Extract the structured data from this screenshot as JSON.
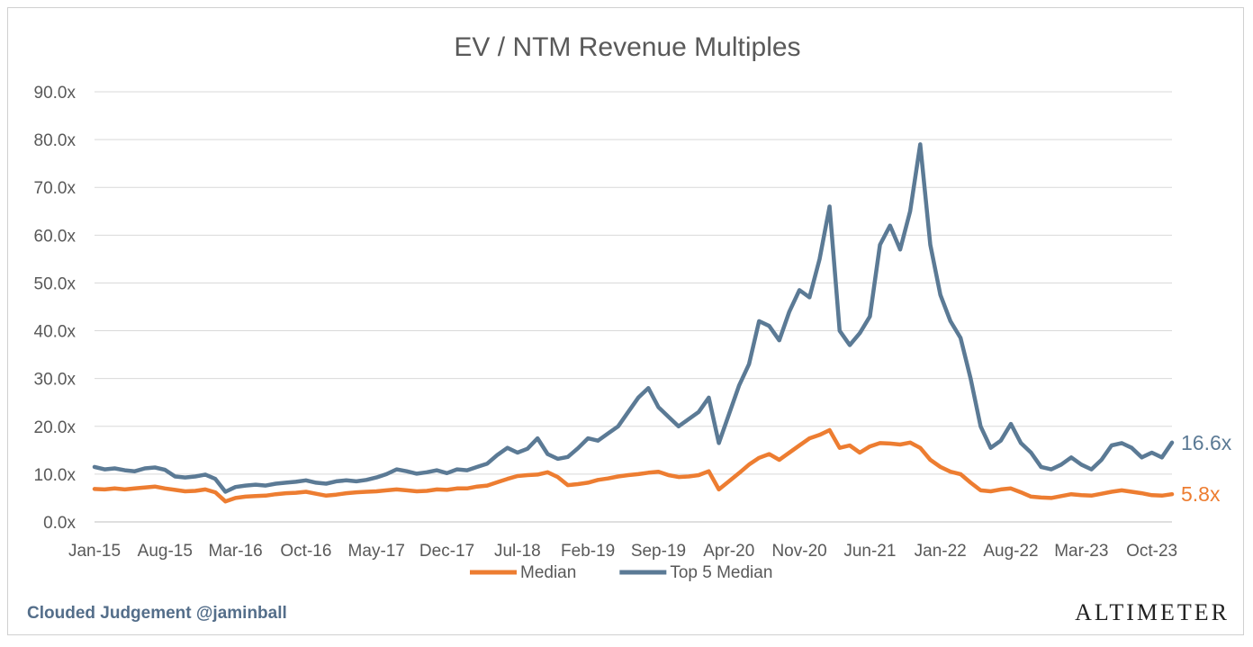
{
  "chart_data": {
    "type": "line",
    "title": "EV / NTM Revenue Multiples",
    "ylim": [
      0,
      90
    ],
    "yticks": [
      "0.0x",
      "10.0x",
      "20.0x",
      "30.0x",
      "40.0x",
      "50.0x",
      "60.0x",
      "70.0x",
      "80.0x",
      "90.0x"
    ],
    "xticks": [
      "Jan-15",
      "Aug-15",
      "Mar-16",
      "Oct-16",
      "May-17",
      "Dec-17",
      "Jul-18",
      "Feb-19",
      "Sep-19",
      "Apr-20",
      "Nov-20",
      "Jun-21",
      "Jan-22",
      "Aug-22",
      "Mar-23",
      "Oct-23"
    ],
    "x_range": [
      "Jan-15",
      "Dec-23"
    ],
    "grid": true,
    "legend_position": "bottom",
    "series": [
      {
        "name": "Median",
        "color": "#ed7d31",
        "end_label": "5.8x",
        "points": [
          [
            "2015-01",
            6.9
          ],
          [
            "2015-02",
            6.8
          ],
          [
            "2015-03",
            7.0
          ],
          [
            "2015-04",
            6.8
          ],
          [
            "2015-05",
            7.0
          ],
          [
            "2015-06",
            7.2
          ],
          [
            "2015-07",
            7.4
          ],
          [
            "2015-08",
            7.0
          ],
          [
            "2015-09",
            6.7
          ],
          [
            "2015-10",
            6.4
          ],
          [
            "2015-11",
            6.5
          ],
          [
            "2015-12",
            6.8
          ],
          [
            "2016-01",
            6.2
          ],
          [
            "2016-02",
            4.3
          ],
          [
            "2016-03",
            5.0
          ],
          [
            "2016-04",
            5.3
          ],
          [
            "2016-05",
            5.4
          ],
          [
            "2016-06",
            5.5
          ],
          [
            "2016-07",
            5.8
          ],
          [
            "2016-08",
            6.0
          ],
          [
            "2016-09",
            6.1
          ],
          [
            "2016-10",
            6.3
          ],
          [
            "2016-11",
            5.9
          ],
          [
            "2016-12",
            5.5
          ],
          [
            "2017-01",
            5.7
          ],
          [
            "2017-02",
            6.0
          ],
          [
            "2017-03",
            6.2
          ],
          [
            "2017-04",
            6.3
          ],
          [
            "2017-05",
            6.4
          ],
          [
            "2017-06",
            6.6
          ],
          [
            "2017-07",
            6.8
          ],
          [
            "2017-08",
            6.6
          ],
          [
            "2017-09",
            6.4
          ],
          [
            "2017-10",
            6.5
          ],
          [
            "2017-11",
            6.8
          ],
          [
            "2017-12",
            6.7
          ],
          [
            "2018-01",
            7.0
          ],
          [
            "2018-02",
            7.0
          ],
          [
            "2018-03",
            7.4
          ],
          [
            "2018-04",
            7.6
          ],
          [
            "2018-05",
            8.3
          ],
          [
            "2018-06",
            9.0
          ],
          [
            "2018-07",
            9.6
          ],
          [
            "2018-08",
            9.8
          ],
          [
            "2018-09",
            9.9
          ],
          [
            "2018-10",
            10.4
          ],
          [
            "2018-11",
            9.4
          ],
          [
            "2018-12",
            7.7
          ],
          [
            "2019-01",
            7.9
          ],
          [
            "2019-02",
            8.2
          ],
          [
            "2019-03",
            8.8
          ],
          [
            "2019-04",
            9.1
          ],
          [
            "2019-05",
            9.5
          ],
          [
            "2019-06",
            9.8
          ],
          [
            "2019-07",
            10.0
          ],
          [
            "2019-08",
            10.3
          ],
          [
            "2019-09",
            10.5
          ],
          [
            "2019-10",
            9.8
          ],
          [
            "2019-11",
            9.4
          ],
          [
            "2019-12",
            9.5
          ],
          [
            "2020-01",
            9.8
          ],
          [
            "2020-02",
            10.6
          ],
          [
            "2020-03",
            6.8
          ],
          [
            "2020-04",
            8.5
          ],
          [
            "2020-05",
            10.2
          ],
          [
            "2020-06",
            12.0
          ],
          [
            "2020-07",
            13.4
          ],
          [
            "2020-08",
            14.2
          ],
          [
            "2020-09",
            13.0
          ],
          [
            "2020-10",
            14.5
          ],
          [
            "2020-11",
            16.0
          ],
          [
            "2020-12",
            17.5
          ],
          [
            "2021-01",
            18.2
          ],
          [
            "2021-02",
            19.2
          ],
          [
            "2021-03",
            15.5
          ],
          [
            "2021-04",
            16.0
          ],
          [
            "2021-05",
            14.5
          ],
          [
            "2021-06",
            15.8
          ],
          [
            "2021-07",
            16.5
          ],
          [
            "2021-08",
            16.4
          ],
          [
            "2021-09",
            16.2
          ],
          [
            "2021-10",
            16.6
          ],
          [
            "2021-11",
            15.5
          ],
          [
            "2021-12",
            13.0
          ],
          [
            "2022-01",
            11.5
          ],
          [
            "2022-02",
            10.5
          ],
          [
            "2022-03",
            10.0
          ],
          [
            "2022-04",
            8.2
          ],
          [
            "2022-05",
            6.6
          ],
          [
            "2022-06",
            6.4
          ],
          [
            "2022-07",
            6.8
          ],
          [
            "2022-08",
            7.0
          ],
          [
            "2022-09",
            6.2
          ],
          [
            "2022-10",
            5.3
          ],
          [
            "2022-11",
            5.1
          ],
          [
            "2022-12",
            5.0
          ],
          [
            "2023-01",
            5.4
          ],
          [
            "2023-02",
            5.8
          ],
          [
            "2023-03",
            5.6
          ],
          [
            "2023-04",
            5.5
          ],
          [
            "2023-05",
            5.9
          ],
          [
            "2023-06",
            6.3
          ],
          [
            "2023-07",
            6.6
          ],
          [
            "2023-08",
            6.3
          ],
          [
            "2023-09",
            6.0
          ],
          [
            "2023-10",
            5.6
          ],
          [
            "2023-11",
            5.5
          ],
          [
            "2023-12",
            5.8
          ]
        ]
      },
      {
        "name": "Top 5 Median",
        "color": "#5b7a95",
        "end_label": "16.6x",
        "points": [
          [
            "2015-01",
            11.5
          ],
          [
            "2015-02",
            11.0
          ],
          [
            "2015-03",
            11.2
          ],
          [
            "2015-04",
            10.8
          ],
          [
            "2015-05",
            10.6
          ],
          [
            "2015-06",
            11.2
          ],
          [
            "2015-07",
            11.4
          ],
          [
            "2015-08",
            10.9
          ],
          [
            "2015-09",
            9.5
          ],
          [
            "2015-10",
            9.3
          ],
          [
            "2015-11",
            9.5
          ],
          [
            "2015-12",
            9.9
          ],
          [
            "2016-01",
            9.0
          ],
          [
            "2016-02",
            6.3
          ],
          [
            "2016-03",
            7.3
          ],
          [
            "2016-04",
            7.6
          ],
          [
            "2016-05",
            7.8
          ],
          [
            "2016-06",
            7.6
          ],
          [
            "2016-07",
            8.0
          ],
          [
            "2016-08",
            8.2
          ],
          [
            "2016-09",
            8.4
          ],
          [
            "2016-10",
            8.7
          ],
          [
            "2016-11",
            8.2
          ],
          [
            "2016-12",
            8.0
          ],
          [
            "2017-01",
            8.5
          ],
          [
            "2017-02",
            8.7
          ],
          [
            "2017-03",
            8.5
          ],
          [
            "2017-04",
            8.8
          ],
          [
            "2017-05",
            9.3
          ],
          [
            "2017-06",
            10.0
          ],
          [
            "2017-07",
            11.0
          ],
          [
            "2017-08",
            10.6
          ],
          [
            "2017-09",
            10.1
          ],
          [
            "2017-10",
            10.4
          ],
          [
            "2017-11",
            10.8
          ],
          [
            "2017-12",
            10.2
          ],
          [
            "2018-01",
            11.0
          ],
          [
            "2018-02",
            10.8
          ],
          [
            "2018-03",
            11.5
          ],
          [
            "2018-04",
            12.2
          ],
          [
            "2018-05",
            14.0
          ],
          [
            "2018-06",
            15.5
          ],
          [
            "2018-07",
            14.5
          ],
          [
            "2018-08",
            15.3
          ],
          [
            "2018-09",
            17.5
          ],
          [
            "2018-10",
            14.2
          ],
          [
            "2018-11",
            13.2
          ],
          [
            "2018-12",
            13.6
          ],
          [
            "2019-01",
            15.4
          ],
          [
            "2019-02",
            17.5
          ],
          [
            "2019-03",
            17.0
          ],
          [
            "2019-04",
            18.5
          ],
          [
            "2019-05",
            20.0
          ],
          [
            "2019-06",
            23.0
          ],
          [
            "2019-07",
            26.0
          ],
          [
            "2019-08",
            28.0
          ],
          [
            "2019-09",
            24.0
          ],
          [
            "2019-10",
            22.0
          ],
          [
            "2019-11",
            20.0
          ],
          [
            "2019-12",
            21.5
          ],
          [
            "2020-01",
            23.0
          ],
          [
            "2020-02",
            26.0
          ],
          [
            "2020-03",
            16.5
          ],
          [
            "2020-04",
            22.5
          ],
          [
            "2020-05",
            28.5
          ],
          [
            "2020-06",
            33.0
          ],
          [
            "2020-07",
            42.0
          ],
          [
            "2020-08",
            41.0
          ],
          [
            "2020-09",
            38.0
          ],
          [
            "2020-10",
            44.0
          ],
          [
            "2020-11",
            48.5
          ],
          [
            "2020-12",
            47.0
          ],
          [
            "2021-01",
            55.0
          ],
          [
            "2021-02",
            66.0
          ],
          [
            "2021-03",
            40.0
          ],
          [
            "2021-04",
            37.0
          ],
          [
            "2021-05",
            39.5
          ],
          [
            "2021-06",
            43.0
          ],
          [
            "2021-07",
            58.0
          ],
          [
            "2021-08",
            62.0
          ],
          [
            "2021-09",
            57.0
          ],
          [
            "2021-10",
            65.0
          ],
          [
            "2021-11",
            79.0
          ],
          [
            "2021-12",
            58.0
          ],
          [
            "2022-01",
            47.5
          ],
          [
            "2022-02",
            42.0
          ],
          [
            "2022-03",
            38.5
          ],
          [
            "2022-04",
            30.0
          ],
          [
            "2022-05",
            20.0
          ],
          [
            "2022-06",
            15.5
          ],
          [
            "2022-07",
            17.0
          ],
          [
            "2022-08",
            20.5
          ],
          [
            "2022-09",
            16.5
          ],
          [
            "2022-10",
            14.5
          ],
          [
            "2022-11",
            11.5
          ],
          [
            "2022-12",
            11.0
          ],
          [
            "2023-01",
            12.0
          ],
          [
            "2023-02",
            13.5
          ],
          [
            "2023-03",
            12.0
          ],
          [
            "2023-04",
            11.0
          ],
          [
            "2023-05",
            13.0
          ],
          [
            "2023-06",
            16.0
          ],
          [
            "2023-07",
            16.5
          ],
          [
            "2023-08",
            15.5
          ],
          [
            "2023-09",
            13.5
          ],
          [
            "2023-10",
            14.5
          ],
          [
            "2023-11",
            13.5
          ],
          [
            "2023-12",
            16.6
          ]
        ]
      }
    ]
  },
  "footer": {
    "left": "Clouded Judgement @jaminball",
    "right": "ALTIMETER"
  }
}
